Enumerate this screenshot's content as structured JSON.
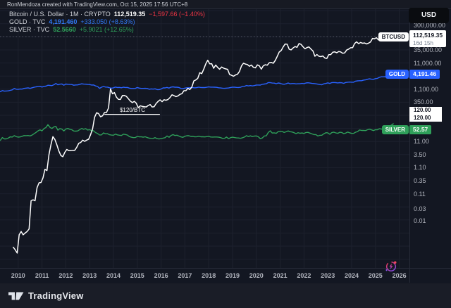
{
  "meta": {
    "attribution": "RonMendoza created with TradingView.com, Oct 15, 2025 17:56 UTC+8"
  },
  "legend": {
    "rows": [
      {
        "symbol": "Bitcoin / U.S. Dollar · 1M · CRYPTO",
        "value": "112,519.35",
        "change": "−1,597.66 (−1.40%)",
        "value_color": "#ffffff",
        "change_color": "#f23645"
      },
      {
        "symbol": "GOLD · TVC",
        "value": "4,191.460",
        "change": "+333.050 (+8.63%)",
        "value_color": "#3179f5",
        "change_color": "#3179f5"
      },
      {
        "symbol": "SILVER · TVC",
        "value": "52.5660",
        "change": "+5.9021 (+12.65%)",
        "value_color": "#2fa05a",
        "change_color": "#2fa05a"
      }
    ]
  },
  "price_axis": {
    "currency_button": "USD",
    "ticks": [
      {
        "price": 300000,
        "label": "300,000.00"
      },
      {
        "price": 35000,
        "label": "35,000.00"
      },
      {
        "price": 11000,
        "label": "11,000.00"
      },
      {
        "price": 1100,
        "label": "1,100.00"
      },
      {
        "price": 350,
        "label": "350.00"
      },
      {
        "price": 11,
        "label": "11.00"
      },
      {
        "price": 3.5,
        "label": "3.50"
      },
      {
        "price": 1.1,
        "label": "1.10"
      },
      {
        "price": 0.35,
        "label": "0.35"
      },
      {
        "price": 0.11,
        "label": "0.11"
      },
      {
        "price": 0.03,
        "label": "0.03"
      },
      {
        "price": 0.01,
        "label": "0.01"
      }
    ],
    "labels": {
      "btcusd": {
        "name": "BTCUSD",
        "price": "112,519.35",
        "countdown": "16d 15h"
      },
      "gold": {
        "name": "GOLD",
        "price": "4,191.46"
      },
      "silver": {
        "name": "SILVER",
        "price": "52.57"
      },
      "line_levels": [
        "120.00",
        "120.00"
      ]
    }
  },
  "time_axis": {
    "years": [
      "2010",
      "2011",
      "2012",
      "2013",
      "2014",
      "2015",
      "2016",
      "2017",
      "2018",
      "2019",
      "2020",
      "2021",
      "2022",
      "2023",
      "2024",
      "2025",
      "2026"
    ]
  },
  "annotation": {
    "text": "$120/BTC"
  },
  "footer": {
    "logo_text": "TradingView"
  },
  "colors": {
    "background": "#131722",
    "grid": "#1d212e",
    "axis_text": "#b2b5be",
    "btc": "#ffffff",
    "gold": "#2962ff",
    "silver": "#2fa05a",
    "negative": "#f23645"
  },
  "chart_data": {
    "type": "line",
    "title": "Bitcoin / U.S. Dollar (1M, CRYPTO) compared with GOLD (TVC) and SILVER (TVC)",
    "y_scale": "log",
    "ylabel": "Price (USD)",
    "x_range": [
      2009.2,
      2026.4
    ],
    "y_range": [
      0.002,
      400000
    ],
    "grid": true,
    "legend_position": "top-left",
    "last_values": {
      "BTCUSD": 112519.35,
      "GOLD": 4191.46,
      "SILVER": 52.57
    },
    "horizontal_line": {
      "price": 120,
      "label": "$120/BTC",
      "x_from": 2013.62,
      "x_to": 2015.95
    },
    "series": [
      {
        "name": "BTCUSD",
        "color": "#ffffff",
        "start": 2009.7917,
        "step_years": 0.083333,
        "values": [
          0.001,
          0.0008,
          0.0006,
          0.003,
          0.004,
          0.003,
          0.0035,
          0.004,
          0.005,
          0.06,
          0.065,
          0.06,
          0.19,
          0.29,
          0.3,
          0.45,
          0.95,
          0.85,
          3.5,
          8.3,
          16.9,
          13.1,
          8.2,
          4.8,
          3.2,
          2.9,
          4.25,
          5.5,
          4.9,
          4.9,
          5.1,
          5.1,
          6.6,
          9.4,
          10.1,
          12.4,
          11.2,
          12.5,
          13.5,
          20.4,
          33.4,
          93,
          139,
          128,
          97,
          106,
          141,
          141,
          211,
          1130,
          732,
          816,
          550,
          454,
          446,
          627,
          635,
          589,
          478,
          387,
          338,
          378,
          320,
          217,
          254,
          244,
          236,
          230,
          263,
          284,
          230,
          236,
          314,
          377,
          430,
          368,
          437,
          416,
          448,
          531,
          673,
          624,
          573,
          609,
          700,
          742,
          963,
          970,
          1179,
          1071,
          1347,
          2286,
          2480,
          2875,
          4703,
          4338,
          6468,
          10233,
          14156,
          10221,
          10397,
          6938,
          9240,
          7494,
          6404,
          7780,
          7037,
          6625,
          6317,
          4017,
          3742,
          3457,
          3854,
          4105,
          5320,
          8574,
          10817,
          10085,
          9630,
          8310,
          9199,
          7569,
          7193,
          9350,
          8599,
          6438,
          8658,
          9461,
          9137,
          11351,
          11655,
          10776,
          13797,
          19698,
          28993,
          33114,
          45240,
          58789,
          57750,
          37332,
          35041,
          41626,
          47130,
          43791,
          61310,
          56987,
          46217,
          38483,
          43193,
          45539,
          37630,
          31793,
          19986,
          23303,
          20050,
          19432,
          20490,
          17168,
          16547,
          23130,
          23139,
          28478,
          29338,
          27219,
          30477,
          29230,
          25932,
          26962,
          34657,
          37718,
          42265,
          42580,
          61198,
          71334,
          60637,
          67491,
          62678,
          64619,
          58969,
          63329,
          70215,
          96449,
          93429,
          102405,
          84349,
          82549,
          94207,
          104598,
          107135,
          115758,
          108236,
          114056,
          112519.35
        ]
      },
      {
        "name": "GOLD",
        "color": "#2962ff",
        "start": 2009.25,
        "step_years": 0.083333,
        "values": [
          883,
          975,
          927,
          939,
          953,
          996,
          1040,
          1175,
          1095,
          1083,
          1118,
          1113,
          1179,
          1215,
          1242,
          1181,
          1246,
          1307,
          1357,
          1386,
          1421,
          1327,
          1411,
          1439,
          1563,
          1536,
          1500,
          1628,
          1826,
          1620,
          1715,
          1746,
          1564,
          1737,
          1696,
          1668,
          1664,
          1558,
          1598,
          1610,
          1692,
          1772,
          1720,
          1715,
          1676,
          1661,
          1588,
          1597,
          1469,
          1394,
          1192,
          1311,
          1395,
          1327,
          1323,
          1253,
          1202,
          1244,
          1326,
          1283,
          1291,
          1250,
          1315,
          1282,
          1287,
          1208,
          1173,
          1175,
          1184,
          1283,
          1213,
          1183,
          1184,
          1190,
          1172,
          1095,
          1135,
          1114,
          1142,
          1065,
          1061,
          1116,
          1234,
          1232,
          1290,
          1215,
          1322,
          1351,
          1309,
          1316,
          1277,
          1173,
          1152,
          1211,
          1248,
          1249,
          1268,
          1269,
          1242,
          1269,
          1321,
          1280,
          1271,
          1275,
          1303,
          1345,
          1318,
          1325,
          1315,
          1298,
          1253,
          1223,
          1201,
          1192,
          1215,
          1226,
          1282,
          1321,
          1313,
          1292,
          1283,
          1306,
          1409,
          1414,
          1520,
          1472,
          1513,
          1464,
          1517,
          1589,
          1586,
          1577,
          1694,
          1730,
          1781,
          1976,
          1968,
          1886,
          1879,
          1777,
          1898,
          1848,
          1734,
          1708,
          1768,
          1907,
          1770,
          1814,
          1814,
          1757,
          1783,
          1775,
          1829,
          1797,
          1909,
          1937,
          1897,
          1837,
          1807,
          1766,
          1716,
          1662,
          1634,
          1769,
          1824,
          1928,
          1827,
          1969,
          1990,
          1963,
          1919,
          1965,
          1940,
          1848,
          1983,
          2036,
          2063,
          2040,
          2044,
          2230,
          2286,
          2327,
          2327,
          2448,
          2503,
          2635,
          2744,
          2651,
          2625,
          2798,
          2858,
          3123,
          3289,
          3289,
          3303,
          3290,
          3448,
          3859,
          4191.46
        ]
      },
      {
        "name": "SILVER",
        "color": "#2fa05a",
        "start": 2009.25,
        "step_years": 0.083333,
        "values": [
          12.3,
          15.6,
          13.9,
          13.9,
          14.9,
          16.6,
          16.3,
          18.4,
          16.9,
          16.2,
          16.5,
          17.5,
          18.6,
          18.4,
          18.7,
          18.0,
          19.4,
          21.8,
          24.6,
          28.2,
          30.9,
          28.1,
          34.3,
          37.9,
          48.6,
          38.3,
          34.8,
          40.1,
          41.8,
          30.0,
          34.3,
          32.8,
          27.9,
          33.3,
          34.6,
          32.5,
          31.0,
          27.8,
          27.5,
          28.0,
          31.4,
          34.6,
          32.3,
          34.2,
          30.2,
          31.4,
          28.5,
          28.3,
          24.2,
          22.2,
          19.6,
          19.7,
          23.5,
          21.7,
          21.9,
          20.0,
          19.4,
          19.1,
          21.2,
          19.8,
          19.2,
          18.7,
          21.0,
          20.4,
          19.5,
          17.0,
          16.1,
          15.5,
          15.6,
          17.2,
          16.6,
          16.6,
          16.1,
          16.7,
          15.6,
          14.8,
          14.6,
          14.5,
          15.5,
          14.1,
          13.8,
          14.2,
          14.9,
          15.4,
          17.9,
          16.0,
          18.7,
          20.3,
          18.7,
          19.2,
          17.8,
          16.5,
          15.9,
          17.5,
          18.3,
          18.3,
          17.2,
          17.3,
          16.6,
          16.8,
          17.6,
          16.7,
          16.7,
          16.5,
          16.9,
          17.3,
          16.4,
          16.3,
          16.4,
          16.4,
          16.1,
          15.5,
          14.5,
          14.7,
          16.3,
          14.1,
          15.5,
          16.1,
          15.6,
          15.1,
          15.0,
          14.6,
          15.3,
          16.3,
          18.4,
          17.0,
          18.1,
          17.0,
          17.8,
          18.0,
          16.7,
          14.1,
          15.0,
          17.9,
          18.2,
          24.4,
          28.3,
          23.2,
          23.7,
          22.6,
          26.4,
          27.0,
          26.7,
          24.4,
          25.9,
          28.0,
          26.1,
          25.5,
          23.9,
          22.1,
          23.9,
          22.8,
          23.3,
          22.4,
          24.4,
          24.7,
          23.1,
          21.5,
          20.3,
          20.2,
          17.9,
          19.0,
          19.2,
          21.8,
          23.9,
          23.6,
          20.9,
          24.1,
          25.1,
          23.5,
          22.7,
          24.8,
          24.4,
          22.1,
          23.0,
          25.3,
          23.8,
          22.5,
          22.7,
          25.0,
          26.3,
          30.4,
          29.1,
          29.2,
          28.8,
          31.1,
          32.7,
          30.6,
          28.9,
          31.3,
          31.1,
          34.0,
          32.9,
          33.0,
          36.1,
          36.7,
          39.7,
          46.6,
          52.57
        ]
      }
    ]
  }
}
